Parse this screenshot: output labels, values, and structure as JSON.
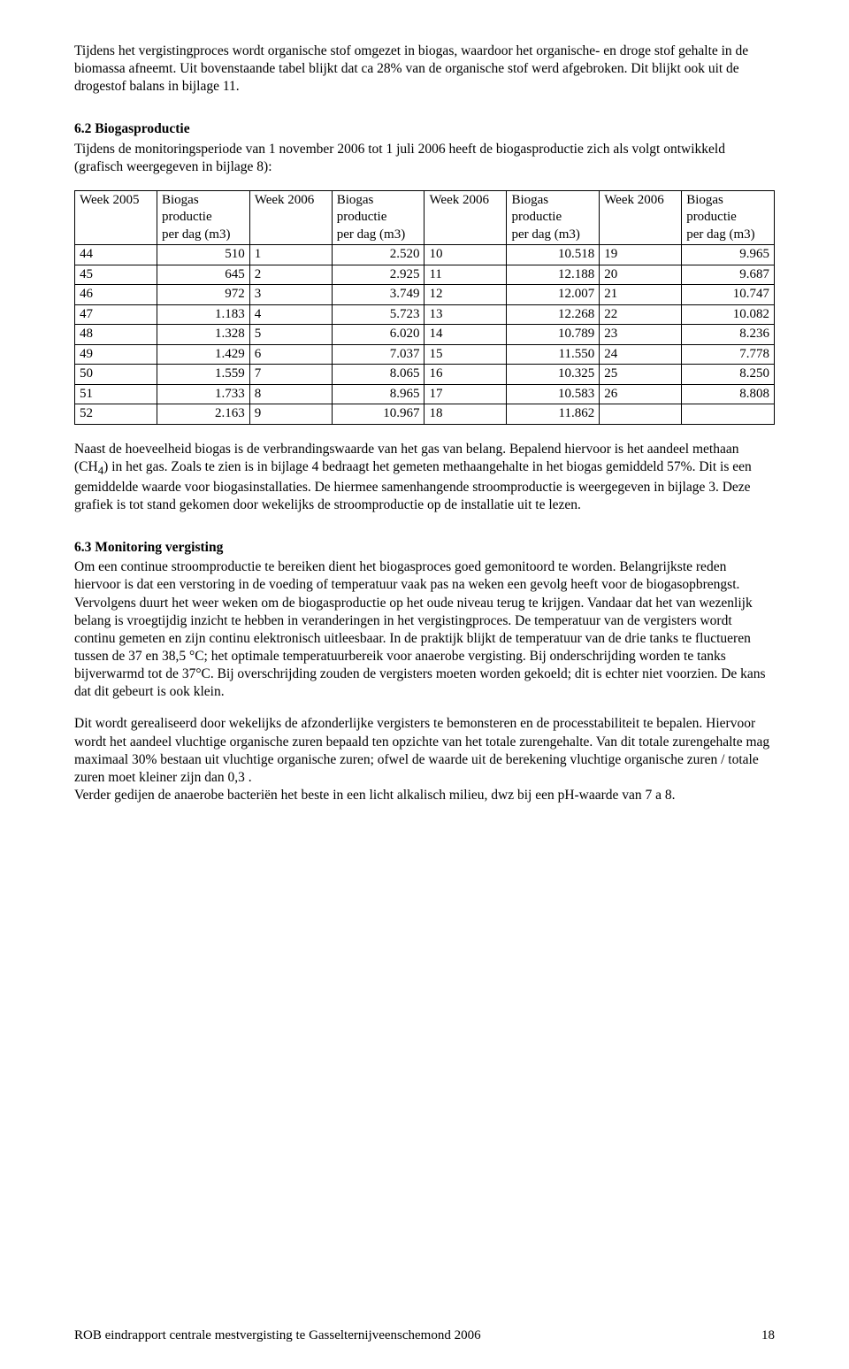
{
  "para1": "Tijdens het vergistingproces wordt organische stof omgezet in biogas, waardoor het organische- en droge stof gehalte in de biomassa afneemt. Uit bovenstaande tabel blijkt dat ca 28% van de organische stof werd afgebroken. Dit blijkt ook uit de drogestof balans in bijlage 11.",
  "heading62": "6.2 Biogasproductie",
  "para62": "Tijdens de monitoringsperiode van 1 november 2006 tot 1 juli 2006 heeft de biogasproductie zich als volgt ontwikkeld (grafisch weergegeven in bijlage 8):",
  "table": {
    "headers": {
      "week2005": "Week 2005",
      "week2006": "Week 2006",
      "biogas_l1": "Biogas",
      "biogas_l2": "productie",
      "biogas_l3": "per dag (m3)"
    },
    "rows": [
      {
        "c1": "44",
        "c2": "510",
        "c3": "1",
        "c4": "2.520",
        "c5": "10",
        "c6": "10.518",
        "c7": "19",
        "c8": "9.965"
      },
      {
        "c1": "45",
        "c2": "645",
        "c3": "2",
        "c4": "2.925",
        "c5": "11",
        "c6": "12.188",
        "c7": "20",
        "c8": "9.687"
      },
      {
        "c1": "46",
        "c2": "972",
        "c3": "3",
        "c4": "3.749",
        "c5": "12",
        "c6": "12.007",
        "c7": "21",
        "c8": "10.747"
      },
      {
        "c1": "47",
        "c2": "1.183",
        "c3": "4",
        "c4": "5.723",
        "c5": "13",
        "c6": "12.268",
        "c7": "22",
        "c8": "10.082"
      },
      {
        "c1": "48",
        "c2": "1.328",
        "c3": "5",
        "c4": "6.020",
        "c5": "14",
        "c6": "10.789",
        "c7": "23",
        "c8": "8.236"
      },
      {
        "c1": "49",
        "c2": "1.429",
        "c3": "6",
        "c4": "7.037",
        "c5": "15",
        "c6": "11.550",
        "c7": "24",
        "c8": "7.778"
      },
      {
        "c1": "50",
        "c2": "1.559",
        "c3": "7",
        "c4": "8.065",
        "c5": "16",
        "c6": "10.325",
        "c7": "25",
        "c8": "8.250"
      },
      {
        "c1": "51",
        "c2": "1.733",
        "c3": "8",
        "c4": "8.965",
        "c5": "17",
        "c6": "10.583",
        "c7": "26",
        "c8": "8.808"
      },
      {
        "c1": "52",
        "c2": "2.163",
        "c3": "9",
        "c4": "10.967",
        "c5": "18",
        "c6": "11.862",
        "c7": "",
        "c8": ""
      }
    ]
  },
  "para62b_1": "Naast de hoeveelheid biogas is de verbrandingswaarde van het gas van belang. Bepalend hiervoor is het aandeel methaan (CH",
  "para62b_sub": "4",
  "para62b_2": ") in het gas. Zoals te zien is in bijlage 4 bedraagt het gemeten methaangehalte in het biogas gemiddeld 57%. Dit is een gemiddelde waarde voor biogasinstallaties. De hiermee samenhangende stroomproductie is weergegeven in bijlage 3. Deze grafiek is tot stand gekomen door wekelijks de stroomproductie op de installatie uit te lezen.",
  "heading63": "6.3 Monitoring vergisting",
  "para63a": "Om een continue stroomproductie te bereiken dient het biogasproces goed gemonitoord te worden. Belangrijkste reden hiervoor is dat een verstoring in de voeding of temperatuur vaak pas na weken een gevolg heeft voor de biogasopbrengst. Vervolgens duurt het weer weken om de biogasproductie op het oude niveau terug te krijgen. Vandaar dat het van wezenlijk belang is vroegtijdig inzicht te hebben in veranderingen in het vergistingproces. De temperatuur van de vergisters wordt continu gemeten en zijn continu elektronisch uitleesbaar. In de praktijk blijkt de temperatuur van de drie tanks te fluctueren tussen de 37 en 38,5 °C; het optimale temperatuurbereik voor anaerobe vergisting. Bij onderschrijding worden te tanks bijverwarmd tot de 37°C. Bij overschrijding zouden de vergisters moeten worden gekoeld; dit is echter niet voorzien. De kans dat dit gebeurt is ook klein.",
  "para63b": "Dit wordt gerealiseerd door wekelijks de afzonderlijke vergisters te bemonsteren en de processtabiliteit te bepalen. Hiervoor wordt het aandeel vluchtige organische zuren bepaald ten opzichte van het totale zurengehalte. Van dit totale zurengehalte mag maximaal 30% bestaan uit vluchtige organische zuren; ofwel de waarde uit de berekening vluchtige organische zuren / totale zuren moet kleiner zijn dan 0,3 .",
  "para63c": "Verder gedijen de anaerobe bacteriën het beste in een licht alkalisch milieu, dwz bij een pH-waarde van 7 a 8.",
  "footer_text": "ROB eindrapport centrale mestvergisting te Gasselternijveenschemond 2006",
  "page_number": "18"
}
